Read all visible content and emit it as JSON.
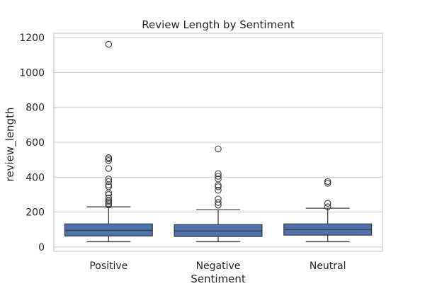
{
  "chart_data": {
    "type": "box",
    "title": "Review Length by Sentiment",
    "xlabel": "Sentiment",
    "ylabel": "review_length",
    "ylim": [
      -25,
      1225
    ],
    "yticks": [
      0,
      200,
      400,
      600,
      800,
      1000,
      1200
    ],
    "grid": "horizontal",
    "box_color": "#4c72b0",
    "categories": [
      "Positive",
      "Negative",
      "Neutral"
    ],
    "boxes": [
      {
        "category": "Positive",
        "whisker_low": 30,
        "q1": 63,
        "median": 95,
        "q3": 132,
        "whisker_high": 230,
        "outliers": [
          240,
          248,
          258,
          265,
          280,
          300,
          310,
          345,
          355,
          375,
          390,
          450,
          495,
          505,
          512,
          1162
        ]
      },
      {
        "category": "Negative",
        "whisker_low": 30,
        "q1": 60,
        "median": 92,
        "q3": 128,
        "whisker_high": 213,
        "outliers": [
          240,
          255,
          275,
          325,
          345,
          355,
          390,
          405,
          420,
          562
        ]
      },
      {
        "category": "Neutral",
        "whisker_low": 30,
        "q1": 68,
        "median": 100,
        "q3": 132,
        "whisker_high": 222,
        "outliers": [
          230,
          250,
          365,
          375
        ]
      }
    ]
  }
}
